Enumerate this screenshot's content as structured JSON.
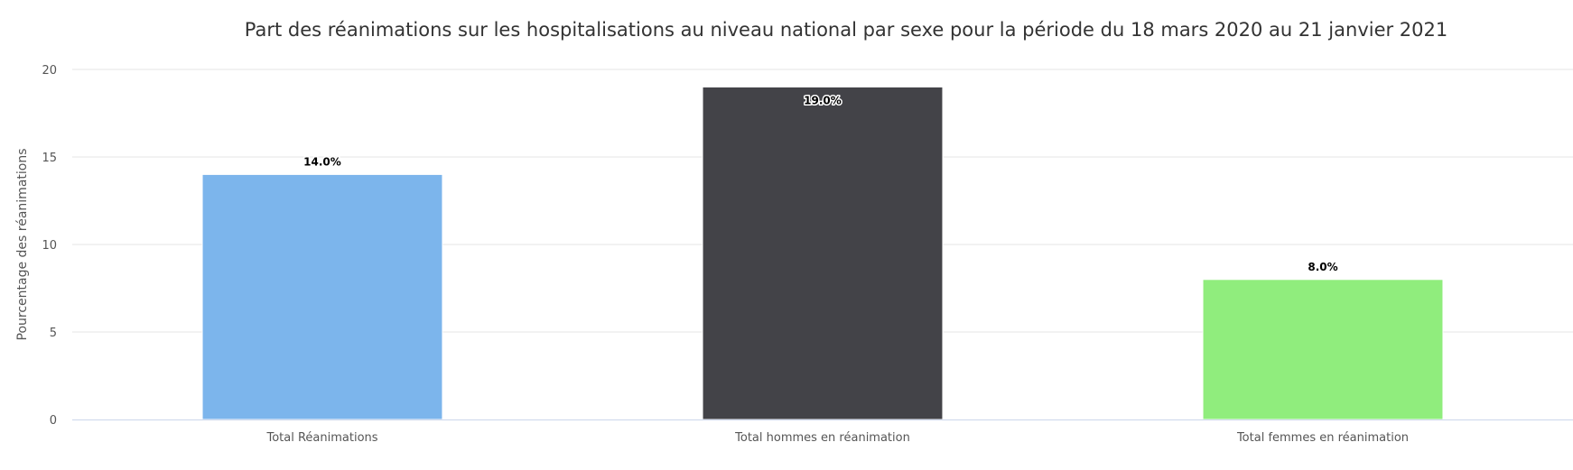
{
  "chart_data": {
    "type": "bar",
    "title": "Part des réanimations sur les hospitalisations au niveau national par sexe pour la période du 18 mars 2020 au 21 janvier 2021",
    "xlabel": "",
    "ylabel": "Pourcentage des réanimations",
    "categories": [
      "Total Réanimations",
      "Total hommes en réanimation",
      "Total femmes en réanimation"
    ],
    "values": [
      14,
      19,
      8
    ],
    "data_labels": [
      "14.0%",
      "19.0%",
      "8.0%"
    ],
    "colors": [
      "#7cb5ec",
      "#434348",
      "#90ed7d"
    ],
    "ylim": [
      0,
      20
    ],
    "yticks": [
      0,
      5,
      10,
      15,
      20
    ],
    "grid": true,
    "legend": "none"
  }
}
